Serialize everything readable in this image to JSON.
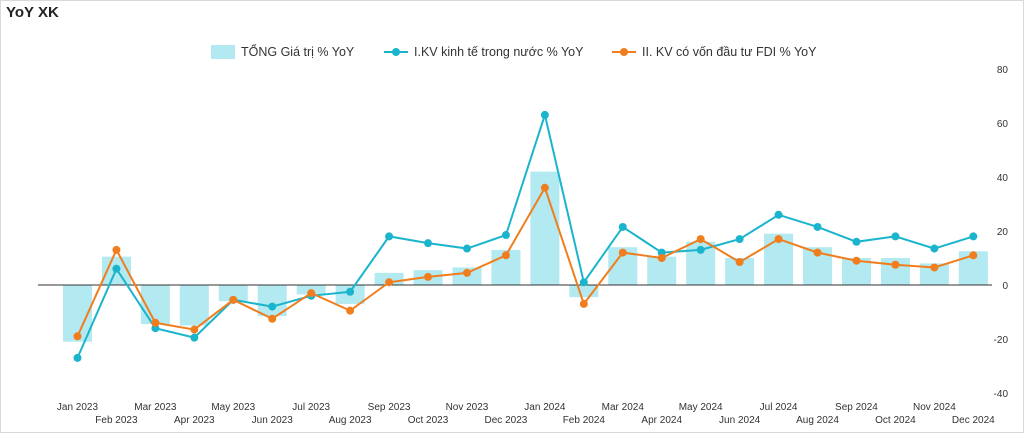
{
  "chart_data": {
    "type": "bar",
    "title": "YoY XK",
    "xlabel": "",
    "ylabel": "",
    "ylim": [
      -40,
      80
    ],
    "yticks": [
      -40,
      -20,
      0,
      20,
      40,
      60,
      80
    ],
    "grid": false,
    "legend_position": "top-center",
    "categories": [
      "Jan 2023",
      "Feb 2023",
      "Mar 2023",
      "Apr 2023",
      "May 2023",
      "Jun 2023",
      "Jul 2023",
      "Aug 2023",
      "Sep 2023",
      "Oct 2023",
      "Nov 2023",
      "Dec 2023",
      "Jan 2024",
      "Feb 2024",
      "Mar 2024",
      "Apr 2024",
      "May 2024",
      "Jun 2024",
      "Jul 2024",
      "Aug 2024",
      "Sep 2024",
      "Oct 2024",
      "Nov 2024",
      "Dec 2024"
    ],
    "series": [
      {
        "name": "TỔNG Giá trị % YoY",
        "type": "bar",
        "color": "#b3e9f0",
        "values": [
          -21,
          10.5,
          -14.5,
          -15,
          -6,
          -11.5,
          -3.5,
          -7,
          4.5,
          5.5,
          6.5,
          13,
          42,
          -4.5,
          14,
          10.5,
          16,
          10,
          19,
          14,
          10,
          10,
          8,
          12.5
        ]
      },
      {
        "name": "I.KV kinh tế trong nước % YoY",
        "type": "line",
        "color": "#1ab5cc",
        "values": [
          -27,
          6,
          -16,
          -19.5,
          -5.5,
          -8,
          -4,
          -2.5,
          18,
          15.5,
          13.5,
          18.5,
          63,
          1,
          21.5,
          12,
          13,
          17,
          26,
          21.5,
          16,
          18,
          13.5,
          18
        ]
      },
      {
        "name": "II. KV có vốn đầu tư FDI % YoY",
        "type": "line",
        "color": "#f07e1e",
        "values": [
          -19,
          13,
          -14,
          -16.5,
          -5.5,
          -12.5,
          -3,
          -9.5,
          1,
          3,
          4.5,
          11,
          36,
          -7,
          12,
          10,
          17,
          8.5,
          17,
          12,
          9,
          7.5,
          6.5,
          11
        ]
      }
    ]
  }
}
